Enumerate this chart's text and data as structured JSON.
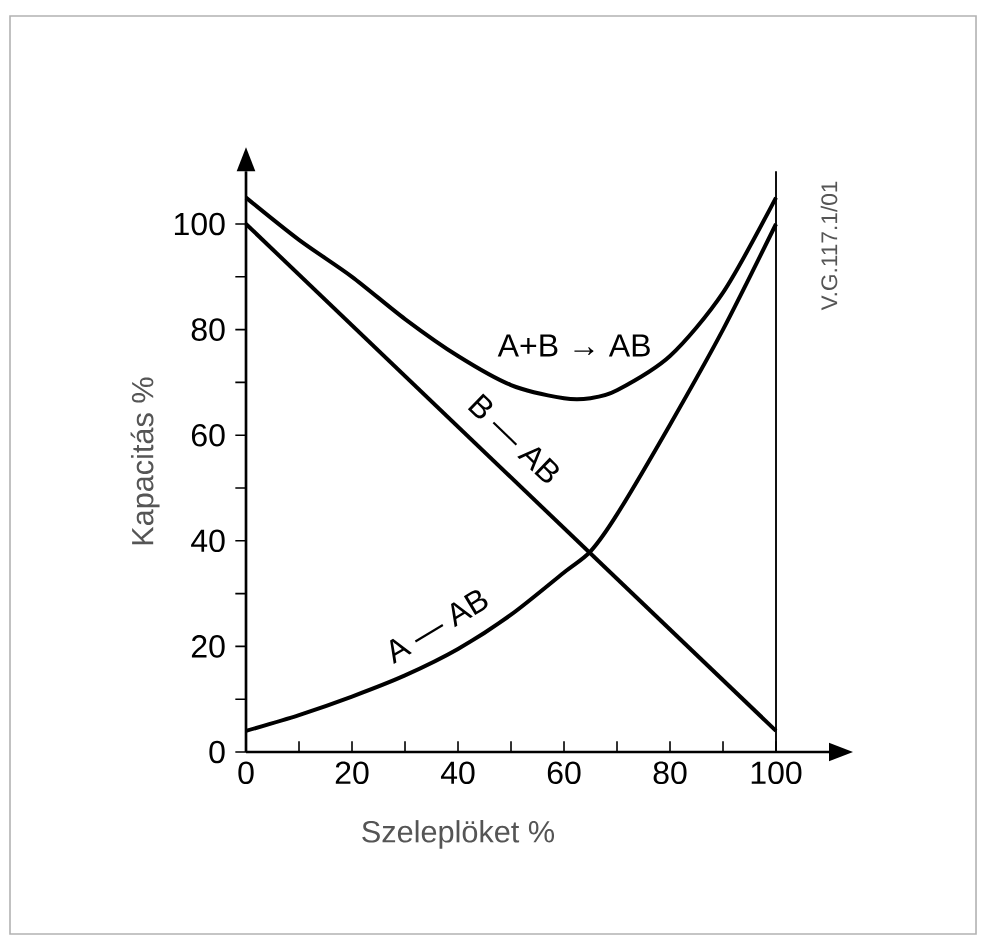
{
  "chart_data": {
    "type": "line",
    "xlabel": "Szeleplöket %",
    "ylabel": "Kapacitás   %",
    "xlim": [
      0,
      110
    ],
    "ylim": [
      0,
      110
    ],
    "xticks": [
      0,
      {
        "value": 10,
        "label": null
      },
      20,
      {
        "value": 30,
        "label": null
      },
      40,
      {
        "value": 50,
        "label": null
      },
      60,
      {
        "value": 70,
        "label": null
      },
      80,
      {
        "value": 90,
        "label": null
      },
      100
    ],
    "yticks": [
      0,
      {
        "value": 10,
        "label": null
      },
      20,
      {
        "value": 30,
        "label": null
      },
      40,
      {
        "value": 50,
        "label": null
      },
      60,
      {
        "value": 70,
        "label": null
      },
      80,
      {
        "value": 90,
        "label": null
      },
      100
    ],
    "series": [
      {
        "name": "A+B → AB",
        "color": "#000000",
        "x": [
          0,
          10,
          20,
          30,
          40,
          50,
          60,
          65,
          70,
          80,
          90,
          100
        ],
        "values": [
          105,
          97,
          90,
          82,
          75,
          69.5,
          67,
          67,
          68.5,
          75,
          87,
          105
        ]
      },
      {
        "name": "B — AB",
        "color": "#000000",
        "x": [
          0,
          100
        ],
        "values": [
          100,
          4
        ]
      },
      {
        "name": "A — AB",
        "color": "#000000",
        "x": [
          0,
          10,
          20,
          30,
          40,
          50,
          60,
          65,
          70,
          80,
          90,
          100
        ],
        "values": [
          4,
          7,
          10.5,
          14.5,
          19.5,
          26,
          34,
          38,
          45,
          62,
          80,
          100
        ]
      }
    ],
    "ref_lines": [
      {
        "axis": "x",
        "value": 100,
        "color": "#000000"
      }
    ],
    "annotations": [
      "V.G.117.1/01"
    ],
    "grid": false,
    "marker": "none",
    "line_style": "solid"
  }
}
